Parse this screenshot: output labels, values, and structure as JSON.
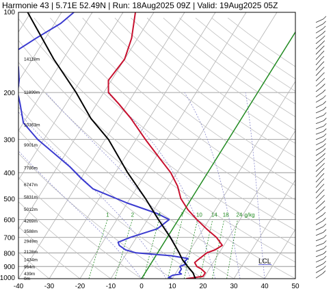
{
  "title": "Harmonie 43 | 5.71E 52.49N | Run: 18Aug2025 09Z | Valid: 19Aug2025 05Z",
  "colors": {
    "temperature": "#c8102e",
    "dewpoint": "#3a3ad0",
    "parcel": "#000000",
    "mixing_ratio": "#228b22",
    "freezing_line": "#228b22",
    "isotherm": "#b0b0b0",
    "dry_adiabat": "#c0c0c0",
    "moist_adiabat": "#8888cc",
    "lcl": "#3a3ad0",
    "wind_barb": "#333333"
  },
  "chart_data": {
    "type": "line",
    "subtype": "skew-T log-p sounding",
    "xlim": [
      -40,
      50
    ],
    "ylim": [
      1000,
      100
    ],
    "y_scale": "log",
    "x_ticks": [
      "-40",
      "-30",
      "-20",
      "-10",
      "0",
      "10",
      "20",
      "30",
      "40",
      "50"
    ],
    "y_ticks": [
      "100",
      "200",
      "300",
      "400",
      "500",
      "600",
      "700",
      "800",
      "900",
      "1000"
    ],
    "height_labels": [
      {
        "p": 150,
        "label": "14118m"
      },
      {
        "p": 200,
        "label": "11899m"
      },
      {
        "p": 265,
        "label": "10363m"
      },
      {
        "p": 315,
        "label": "9001m"
      },
      {
        "p": 385,
        "label": "7780m"
      },
      {
        "p": 445,
        "label": "6747m"
      },
      {
        "p": 495,
        "label": "5831m"
      },
      {
        "p": 550,
        "label": "5012m"
      },
      {
        "p": 608,
        "label": "4269m"
      },
      {
        "p": 665,
        "label": "3588m"
      },
      {
        "p": 725,
        "label": "2949m"
      },
      {
        "p": 795,
        "label": "2128m"
      },
      {
        "p": 850,
        "label": "1434m"
      },
      {
        "p": 905,
        "label": "964m"
      },
      {
        "p": 960,
        "label": "439m"
      },
      {
        "p": 1000,
        "label": "0m"
      }
    ],
    "mixing_ratio_labels": [
      "1",
      "2",
      "4",
      "7",
      "10",
      "14",
      "18",
      "24"
    ],
    "mixing_ratio_unit": "g/kg",
    "lcl_label": "LCL",
    "lcl_pressure": 835,
    "series": [
      {
        "role": "temperature",
        "points": [
          {
            "p": 1000,
            "t": 14.5
          },
          {
            "p": 980,
            "t": 19.5
          },
          {
            "p": 950,
            "t": 19.5
          },
          {
            "p": 920,
            "t": 17.5
          },
          {
            "p": 900,
            "t": 15.5
          },
          {
            "p": 870,
            "t": 14.0
          },
          {
            "p": 850,
            "t": 14.5
          },
          {
            "p": 800,
            "t": 16.0
          },
          {
            "p": 780,
            "t": 18.0
          },
          {
            "p": 750,
            "t": 19.5
          },
          {
            "p": 700,
            "t": 16.0
          },
          {
            "p": 650,
            "t": 11.0
          },
          {
            "p": 600,
            "t": 6.0
          },
          {
            "p": 550,
            "t": 1.0
          },
          {
            "p": 500,
            "t": -3.5
          },
          {
            "p": 450,
            "t": -7.0
          },
          {
            "p": 400,
            "t": -12.0
          },
          {
            "p": 350,
            "t": -19.0
          },
          {
            "p": 300,
            "t": -27.0
          },
          {
            "p": 250,
            "t": -36.0
          },
          {
            "p": 220,
            "t": -43.0
          },
          {
            "p": 200,
            "t": -48.5
          },
          {
            "p": 180,
            "t": -51.0
          },
          {
            "p": 150,
            "t": -50.0
          },
          {
            "p": 125,
            "t": -52.0
          },
          {
            "p": 100,
            "t": -56.0
          }
        ]
      },
      {
        "role": "dewpoint",
        "points": [
          {
            "p": 1000,
            "t": 10.0
          },
          {
            "p": 990,
            "t": 8.5
          },
          {
            "p": 970,
            "t": 9.5
          },
          {
            "p": 960,
            "t": 12.0
          },
          {
            "p": 950,
            "t": 11.0
          },
          {
            "p": 920,
            "t": 11.0
          },
          {
            "p": 900,
            "t": 10.0
          },
          {
            "p": 880,
            "t": 11.5
          },
          {
            "p": 860,
            "t": 10.5
          },
          {
            "p": 840,
            "t": 11.0
          },
          {
            "p": 820,
            "t": 5.0
          },
          {
            "p": 800,
            "t": -7.0
          },
          {
            "p": 780,
            "t": -11.0
          },
          {
            "p": 750,
            "t": -14.0
          },
          {
            "p": 730,
            "t": -15.0
          },
          {
            "p": 700,
            "t": -12.0
          },
          {
            "p": 650,
            "t": -5.0
          },
          {
            "p": 600,
            "t": -3.0
          },
          {
            "p": 570,
            "t": -8.0
          },
          {
            "p": 520,
            "t": -20.0
          },
          {
            "p": 460,
            "t": -34.0
          },
          {
            "p": 420,
            "t": -40.0
          },
          {
            "p": 380,
            "t": -46.0
          },
          {
            "p": 300,
            "t": -62.0
          },
          {
            "p": 260,
            "t": -70.0
          },
          {
            "p": 220,
            "t": -75.0
          },
          {
            "p": 200,
            "t": -78.0
          },
          {
            "p": 180,
            "t": -80.0
          },
          {
            "p": 160,
            "t": -83.0
          },
          {
            "p": 150,
            "t": -86.0
          },
          {
            "p": 140,
            "t": -87.0
          },
          {
            "p": 125,
            "t": -83.0
          },
          {
            "p": 110,
            "t": -78.0
          },
          {
            "p": 100,
            "t": -76.0
          }
        ]
      },
      {
        "role": "parcel",
        "points": [
          {
            "p": 1000,
            "t": 17.5
          },
          {
            "p": 950,
            "t": 15.5
          },
          {
            "p": 900,
            "t": 12.5
          },
          {
            "p": 850,
            "t": 9.5
          },
          {
            "p": 800,
            "t": 7.0
          },
          {
            "p": 700,
            "t": 1.0
          },
          {
            "p": 600,
            "t": -6.5
          },
          {
            "p": 500,
            "t": -15.0
          },
          {
            "p": 400,
            "t": -26.0
          },
          {
            "p": 300,
            "t": -39.0
          },
          {
            "p": 250,
            "t": -49.0
          },
          {
            "p": 200,
            "t": -59.0
          },
          {
            "p": 150,
            "t": -73.0
          },
          {
            "p": 100,
            "t": -91.0
          }
        ]
      }
    ],
    "wind_profile": "barbs along right margin",
    "grid": true
  }
}
